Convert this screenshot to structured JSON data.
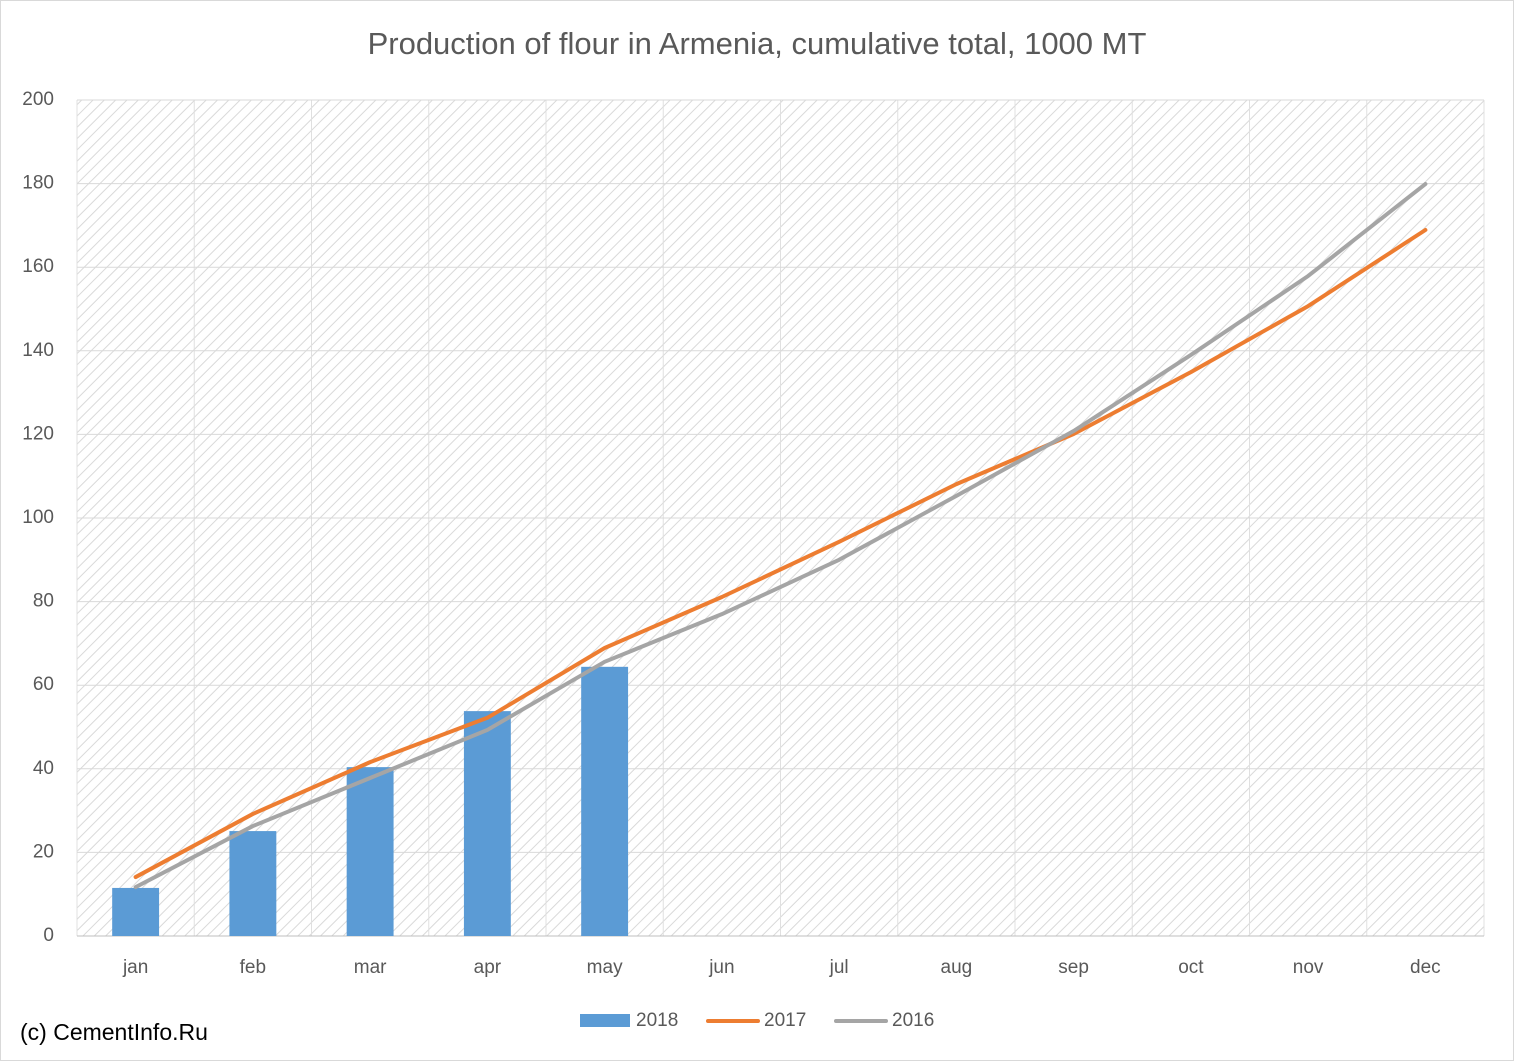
{
  "chart_data": {
    "type": "combo",
    "title": "Production of flour in Armenia, cumulative total, 1000 MT",
    "categories": [
      "jan",
      "feb",
      "mar",
      "apr",
      "may",
      "jun",
      "jul",
      "aug",
      "sep",
      "oct",
      "nov",
      "dec"
    ],
    "series": [
      {
        "name": "2018",
        "type": "bar",
        "color": "#5b9bd5",
        "values": [
          11.5,
          25.1,
          40.4,
          53.8,
          64.4,
          null,
          null,
          null,
          null,
          null,
          null,
          null
        ]
      },
      {
        "name": "2017",
        "type": "line",
        "color": "#ed7d31",
        "values": [
          14.1,
          29.2,
          41.6,
          52.2,
          68.9,
          81.1,
          94.3,
          108.1,
          120.1,
          134.9,
          150.7,
          168.9
        ]
      },
      {
        "name": "2016",
        "type": "line",
        "color": "#a5a5a5",
        "values": [
          11.7,
          26.3,
          37.8,
          49.3,
          65.6,
          77.0,
          90.0,
          105.3,
          120.8,
          139.0,
          157.9,
          179.9
        ]
      }
    ],
    "ylim": [
      0,
      200
    ],
    "yticks": [
      0,
      20,
      40,
      60,
      80,
      100,
      120,
      140,
      160,
      180,
      200
    ],
    "grid": true,
    "legend": "bottom",
    "source": "(c) CementInfo.Ru"
  }
}
